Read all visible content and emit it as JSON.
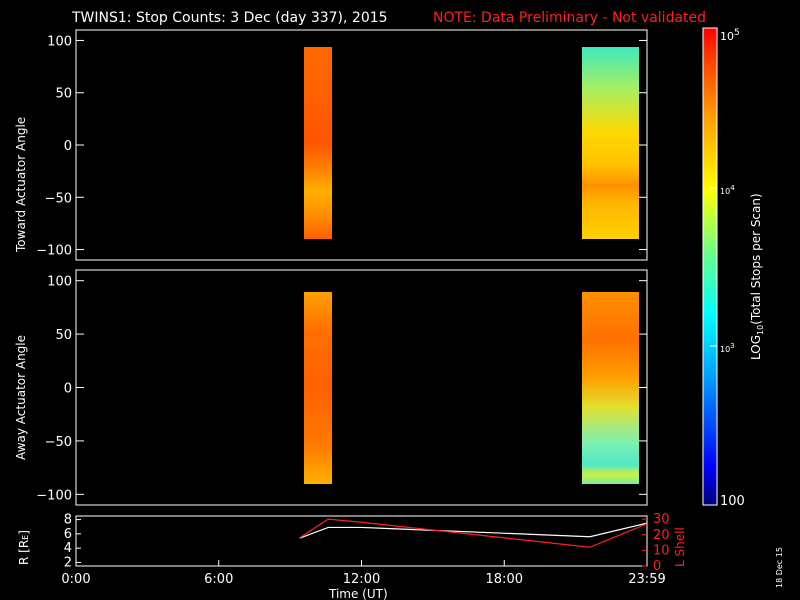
{
  "header": {
    "title": "TWINS1: Stop Counts:  3 Dec (day 337), 2015",
    "note": "NOTE: Data Preliminary - Not validated"
  },
  "panels": {
    "top_ylabel": "Toward Actuator Angle",
    "bottom_ylabel": "Away Actuator Angle",
    "y_ticks": [
      "100",
      "50",
      "0",
      "−50",
      "−100"
    ],
    "ephem_left_label": "R [R",
    "ephem_left_sub": "E",
    "ephem_left_close": "]",
    "ephem_left_ticks": [
      "8",
      "6",
      "4",
      "2"
    ],
    "ephem_right_label": "L Shell",
    "ephem_right_ticks": [
      "30",
      "20",
      "10",
      "0"
    ]
  },
  "xaxis": {
    "ticks": [
      "0:00",
      "6:00",
      "12:00",
      "18:00",
      "23:59"
    ],
    "label": "Time (UT)"
  },
  "colorbar": {
    "label_pre": "LOG",
    "label_sub": "10",
    "label_post": "(Total Stops per Scan)",
    "tick_top": "10",
    "tick_top_exp": "5",
    "tick_mid": "10",
    "tick_mid_exp": "4",
    "tick_low": "10",
    "tick_low_exp": "3",
    "tick_bottom": "100"
  },
  "footer": {
    "date_stamp": "18 Dec 15"
  },
  "colors": {
    "note": "#ff2020",
    "lshell": "#ff2020",
    "radius": "#ffffff"
  },
  "chart_data": [
    {
      "type": "heatmap",
      "panel": "toward",
      "x_unit": "hours UT",
      "xlim": [
        0,
        24
      ],
      "ylim": [
        -110,
        110
      ],
      "ylabel": "Toward Actuator Angle",
      "color_scale": "log",
      "color_range": [
        100,
        100000
      ],
      "blocks": [
        {
          "t_start": 9.4,
          "t_end": 10.6,
          "angle_min": -88,
          "angle_max": 90,
          "dominant_log10": 4.85
        },
        {
          "t_start": 21.6,
          "t_end": 24.0,
          "angle_min": -88,
          "angle_max": 90,
          "dominant_log10": 3.9
        }
      ]
    },
    {
      "type": "heatmap",
      "panel": "away",
      "x_unit": "hours UT",
      "xlim": [
        0,
        24
      ],
      "ylim": [
        -110,
        110
      ],
      "ylabel": "Away Actuator Angle",
      "color_scale": "log",
      "color_range": [
        100,
        100000
      ],
      "blocks": [
        {
          "t_start": 9.4,
          "t_end": 10.6,
          "angle_min": -90,
          "angle_max": 90,
          "dominant_log10": 4.8
        },
        {
          "t_start": 21.6,
          "t_end": 24.0,
          "angle_min": -90,
          "angle_max": 90,
          "dominant_log10": 4.3
        }
      ]
    },
    {
      "type": "line",
      "panel": "ephemeris",
      "xlim": [
        0,
        24
      ],
      "series": [
        {
          "name": "R [RE]",
          "axis": "left",
          "ylim": [
            1.5,
            8.5
          ],
          "x": [
            9.4,
            10.6,
            12.0,
            21.6,
            24.0
          ],
          "y": [
            5.4,
            6.9,
            6.9,
            5.6,
            7.5
          ]
        },
        {
          "name": "L Shell",
          "axis": "right",
          "ylim": [
            0,
            32
          ],
          "x": [
            9.4,
            10.6,
            12.0,
            21.6,
            24.0
          ],
          "y": [
            18,
            30,
            28,
            12,
            27
          ]
        }
      ]
    }
  ]
}
